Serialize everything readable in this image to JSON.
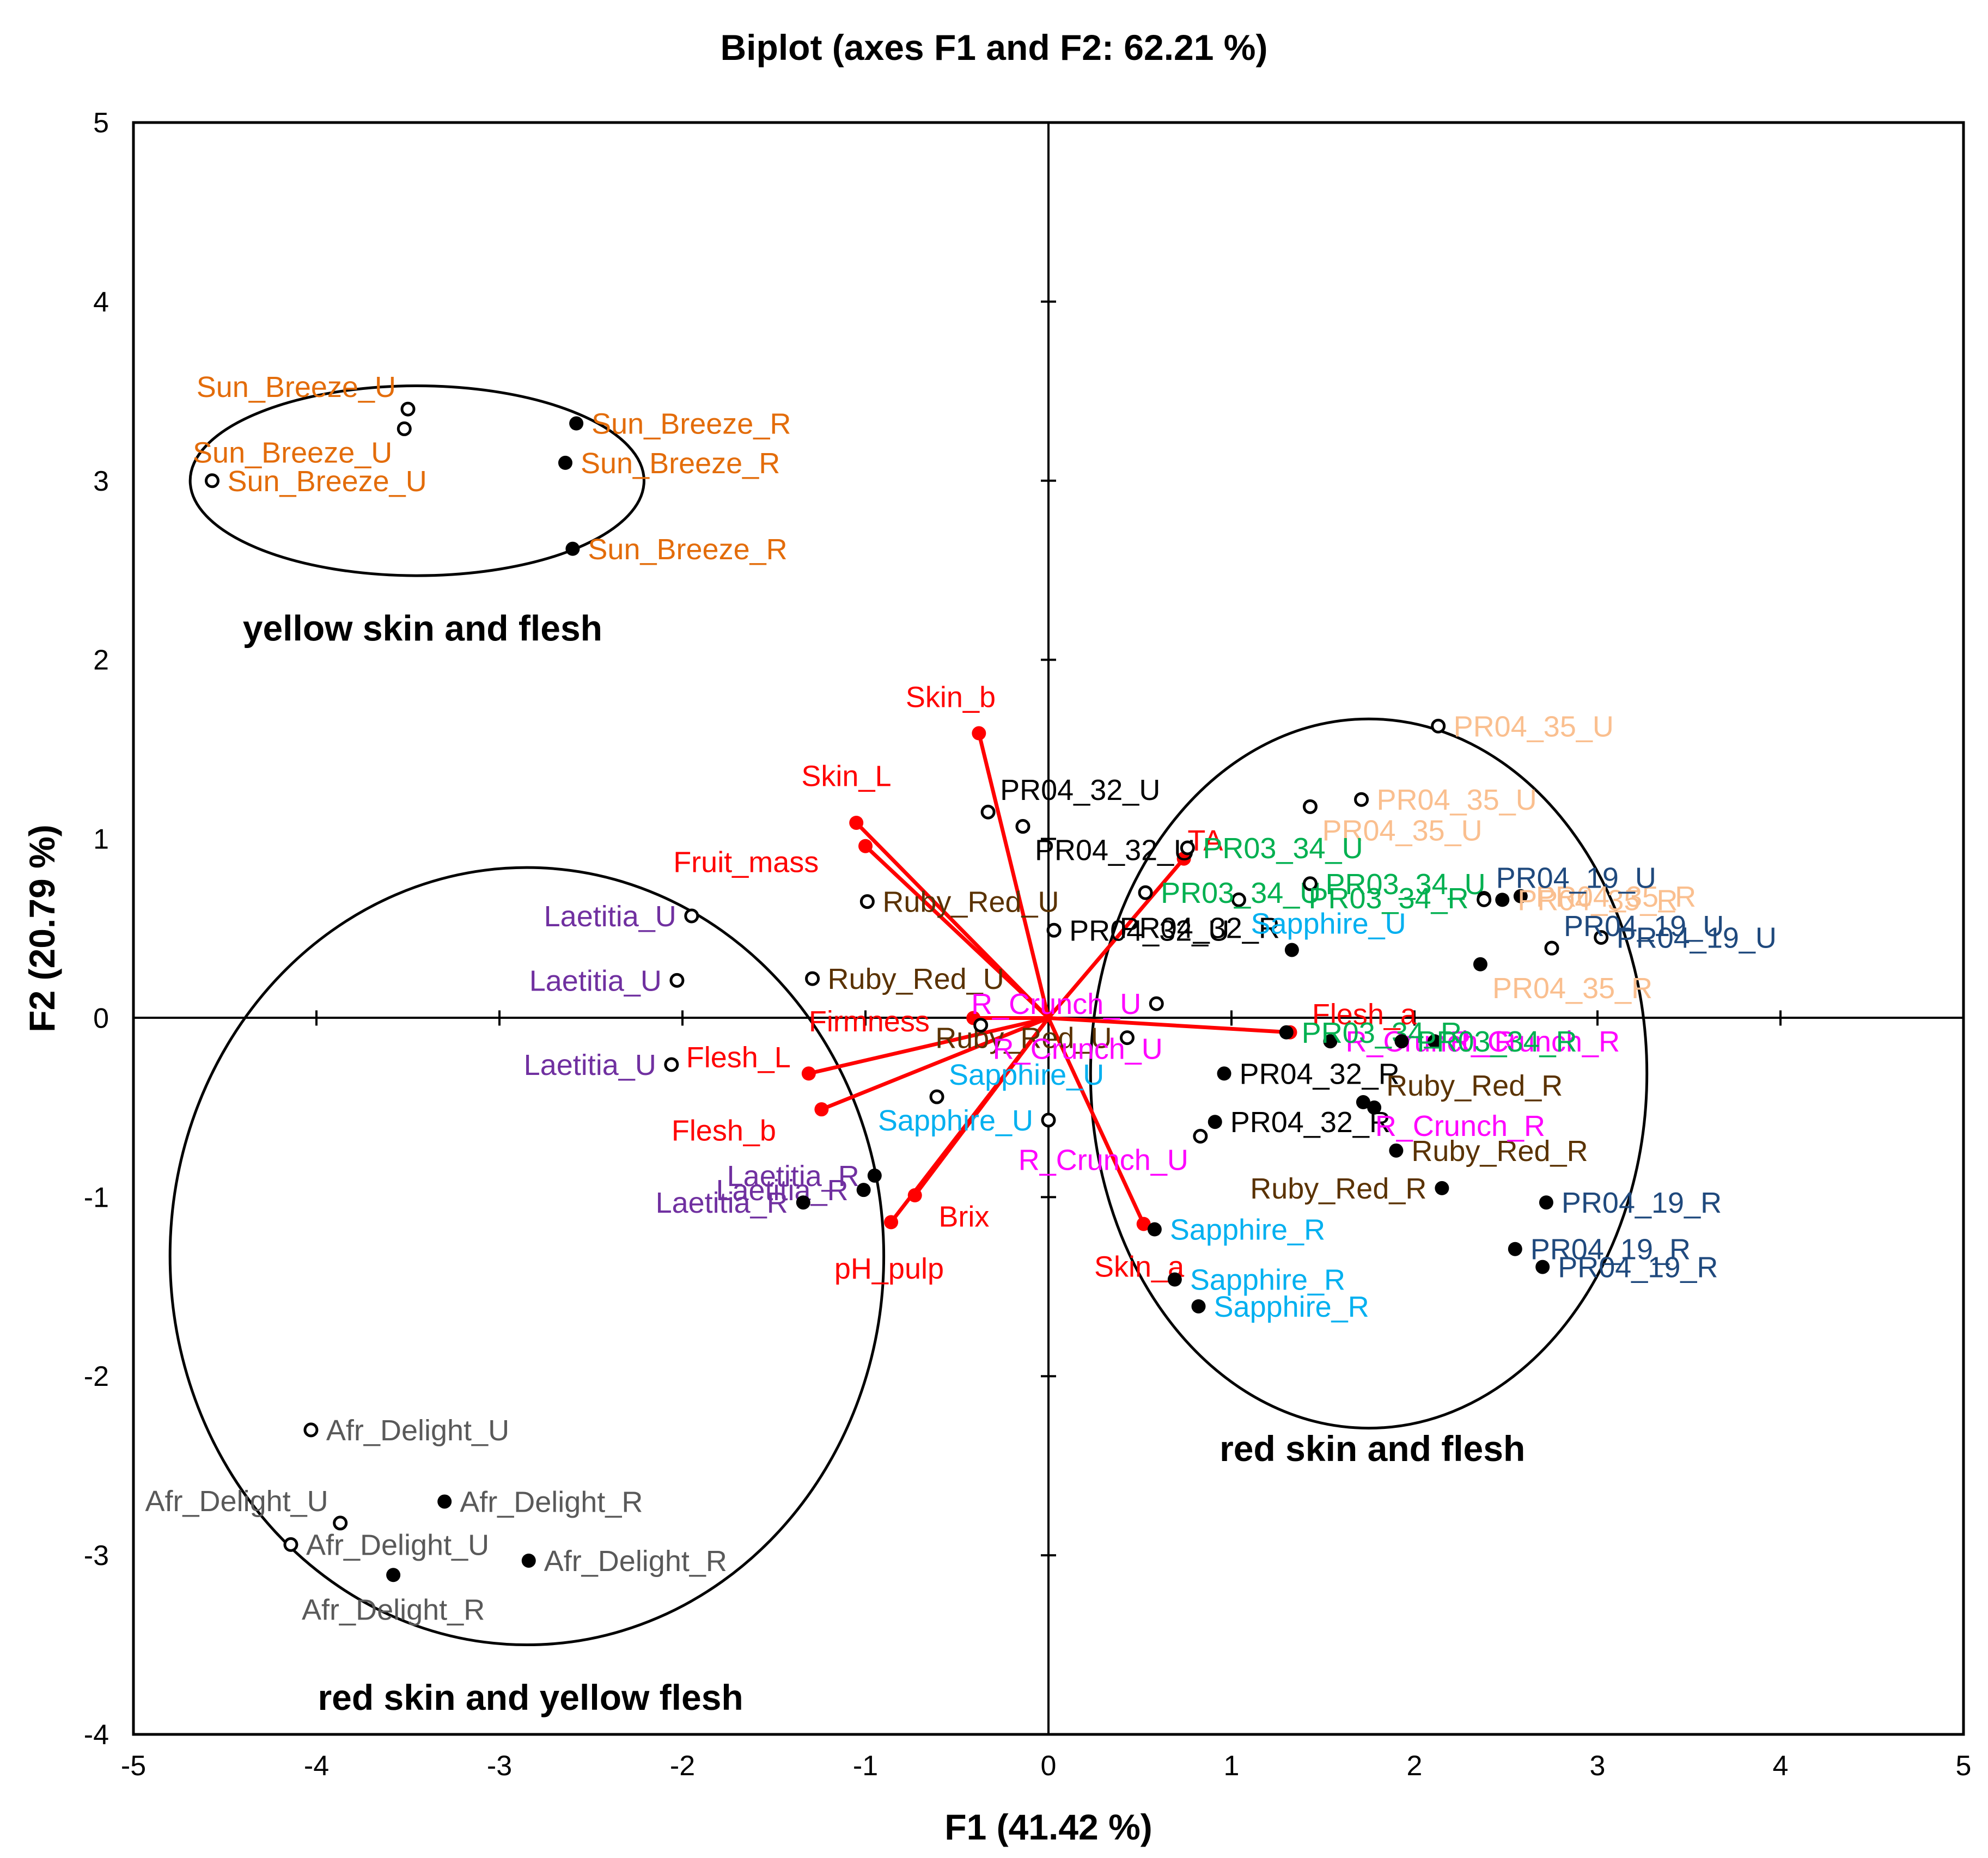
{
  "chart_data": {
    "type": "scatter",
    "title": "Biplot (axes F1 and F2: 62.21 %)",
    "xlabel": "F1 (41.42 %)",
    "ylabel": "F2 (20.79 %)",
    "xlim": [
      -5,
      5
    ],
    "ylim": [
      -4,
      5
    ],
    "xticks": [
      "-5",
      "-4",
      "-3",
      "-2",
      "-1",
      "0",
      "1",
      "2",
      "3",
      "4",
      "5"
    ],
    "yticks": [
      "-4",
      "-3",
      "-2",
      "-1",
      "0",
      "1",
      "2",
      "3",
      "4",
      "5"
    ],
    "colors": {
      "Sun_Breeze": "#e36c0a",
      "Laetitia": "#7030a0",
      "Afr_Delight": "#595959",
      "PR04_32": "#000000",
      "Ruby_Red": "#5a3200",
      "Sapphire": "#00b0f0",
      "R_Crunch": "#ff00ff",
      "PR04_35": "#fabf8f",
      "PR03_34": "#00b050",
      "PR04_19": "#1f497d",
      "variables": "#ff0000"
    },
    "observations": [
      {
        "label": "Sun_Breeze_U",
        "group": "Sun_Breeze",
        "x": -3.5,
        "y": 3.4,
        "ripe": false,
        "label_pos": "nw"
      },
      {
        "label": "Sun_Breeze_U",
        "group": "Sun_Breeze",
        "x": -3.52,
        "y": 3.29,
        "ripe": false,
        "label_pos": "sw"
      },
      {
        "label": "Sun_Breeze_U",
        "group": "Sun_Breeze",
        "x": -4.57,
        "y": 3.0,
        "ripe": false,
        "label_pos": "e"
      },
      {
        "label": "Sun_Breeze_R",
        "group": "Sun_Breeze",
        "x": -2.58,
        "y": 3.32,
        "ripe": true,
        "label_pos": "e"
      },
      {
        "label": "Sun_Breeze_R",
        "group": "Sun_Breeze",
        "x": -2.64,
        "y": 3.1,
        "ripe": true,
        "label_pos": "e"
      },
      {
        "label": "Sun_Breeze_R",
        "group": "Sun_Breeze",
        "x": -2.6,
        "y": 2.62,
        "ripe": true,
        "label_pos": "e"
      },
      {
        "label": "Laetitia_U",
        "group": "Laetitia",
        "x": -1.95,
        "y": 0.57,
        "ripe": false,
        "label_pos": "w"
      },
      {
        "label": "Laetitia_U",
        "group": "Laetitia",
        "x": -2.03,
        "y": 0.21,
        "ripe": false,
        "label_pos": "w"
      },
      {
        "label": "Laetitia_U",
        "group": "Laetitia",
        "x": -2.06,
        "y": -0.26,
        "ripe": false,
        "label_pos": "w"
      },
      {
        "label": "Laetitia_R",
        "group": "Laetitia",
        "x": -0.95,
        "y": -0.88,
        "ripe": true,
        "label_pos": "w"
      },
      {
        "label": "Laetitia_R",
        "group": "Laetitia",
        "x": -1.01,
        "y": -0.96,
        "ripe": true,
        "label_pos": "w"
      },
      {
        "label": "Laetitia_R",
        "group": "Laetitia",
        "x": -1.34,
        "y": -1.03,
        "ripe": true,
        "label_pos": "w"
      },
      {
        "label": "Afr_Delight_U",
        "group": "Afr_Delight",
        "x": -4.03,
        "y": -2.3,
        "ripe": false,
        "label_pos": "e"
      },
      {
        "label": "Afr_Delight_U",
        "group": "Afr_Delight",
        "x": -3.87,
        "y": -2.82,
        "ripe": false,
        "label_pos": "nw"
      },
      {
        "label": "Afr_Delight_U",
        "group": "Afr_Delight",
        "x": -4.14,
        "y": -2.94,
        "ripe": false,
        "label_pos": "e"
      },
      {
        "label": "Afr_Delight_R",
        "group": "Afr_Delight",
        "x": -3.3,
        "y": -2.7,
        "ripe": true,
        "label_pos": "e"
      },
      {
        "label": "Afr_Delight_R",
        "group": "Afr_Delight",
        "x": -2.84,
        "y": -3.03,
        "ripe": true,
        "label_pos": "e"
      },
      {
        "label": "Afr_Delight_R",
        "group": "Afr_Delight",
        "x": -3.58,
        "y": -3.11,
        "ripe": true,
        "label_pos": "s"
      },
      {
        "label": "PR04_32_U",
        "group": "PR04_32",
        "x": -0.33,
        "y": 1.15,
        "ripe": false,
        "label_pos": "ne"
      },
      {
        "label": "PR04_32_U",
        "group": "PR04_32",
        "x": -0.14,
        "y": 1.07,
        "ripe": false,
        "label_pos": "se"
      },
      {
        "label": "PR04_32_U",
        "group": "PR04_32",
        "x": 0.03,
        "y": 0.49,
        "ripe": false,
        "label_pos": "e"
      },
      {
        "label": "PR04_32_R",
        "group": "PR04_32",
        "x": 1.33,
        "y": 0.38,
        "ripe": true,
        "label_pos": "nw"
      },
      {
        "label": "PR04_32_R",
        "group": "PR04_32",
        "x": 0.96,
        "y": -0.31,
        "ripe": true,
        "label_pos": "e"
      },
      {
        "label": "PR04_32_R",
        "group": "PR04_32",
        "x": 0.91,
        "y": -0.58,
        "ripe": true,
        "label_pos": "e"
      },
      {
        "label": "Ruby_Red_U",
        "group": "Ruby_Red",
        "x": -0.99,
        "y": 0.65,
        "ripe": false,
        "label_pos": "e"
      },
      {
        "label": "Ruby_Red_U",
        "group": "Ruby_Red",
        "x": -1.29,
        "y": 0.22,
        "ripe": false,
        "label_pos": "e"
      },
      {
        "label": "Ruby_Red_U",
        "group": "Ruby_Red",
        "x": 0.43,
        "y": -0.11,
        "ripe": false,
        "label_pos": "w"
      },
      {
        "label": "Ruby_Red_R",
        "group": "Ruby_Red",
        "x": 1.78,
        "y": -0.5,
        "ripe": true,
        "label_pos": "ne"
      },
      {
        "label": "Ruby_Red_R",
        "group": "Ruby_Red",
        "x": 1.9,
        "y": -0.74,
        "ripe": true,
        "label_pos": "e"
      },
      {
        "label": "Ruby_Red_R",
        "group": "Ruby_Red",
        "x": 2.15,
        "y": -0.95,
        "ripe": true,
        "label_pos": "w"
      },
      {
        "label": "Sapphire_U",
        "group": "Sapphire",
        "x": 1.04,
        "y": 0.66,
        "ripe": false,
        "label_pos": "se"
      },
      {
        "label": "Sapphire_U",
        "group": "Sapphire",
        "x": -0.61,
        "y": -0.44,
        "ripe": false,
        "label_pos": "ne"
      },
      {
        "label": "Sapphire_U",
        "group": "Sapphire",
        "x": 0.0,
        "y": -0.57,
        "ripe": false,
        "label_pos": "w"
      },
      {
        "label": "Sapphire_R",
        "group": "Sapphire",
        "x": 0.58,
        "y": -1.18,
        "ripe": true,
        "label_pos": "e"
      },
      {
        "label": "Sapphire_R",
        "group": "Sapphire",
        "x": 0.69,
        "y": -1.46,
        "ripe": true,
        "label_pos": "e"
      },
      {
        "label": "Sapphire_R",
        "group": "Sapphire",
        "x": 0.82,
        "y": -1.61,
        "ripe": true,
        "label_pos": "e"
      },
      {
        "label": "R_Crunch_U",
        "group": "R_Crunch",
        "x": 0.59,
        "y": 0.08,
        "ripe": false,
        "label_pos": "w"
      },
      {
        "label": "R_Crunch_U",
        "group": "R_Crunch",
        "x": -0.37,
        "y": -0.04,
        "ripe": false,
        "label_pos": "se"
      },
      {
        "label": "R_Crunch_U",
        "group": "R_Crunch",
        "x": 0.83,
        "y": -0.66,
        "ripe": false,
        "label_pos": "sw"
      },
      {
        "label": "R_Crunch_R",
        "group": "R_Crunch",
        "x": 1.54,
        "y": -0.13,
        "ripe": true,
        "label_pos": "e"
      },
      {
        "label": "R_Crunch_R",
        "group": "R_Crunch",
        "x": 2.11,
        "y": -0.13,
        "ripe": true,
        "label_pos": "e"
      },
      {
        "label": "R_Crunch_R",
        "group": "R_Crunch",
        "x": 1.72,
        "y": -0.47,
        "ripe": true,
        "label_pos": "se"
      },
      {
        "label": "PR04_35_U",
        "group": "PR04_35",
        "x": 2.13,
        "y": 1.63,
        "ripe": false,
        "label_pos": "e"
      },
      {
        "label": "PR04_35_U",
        "group": "PR04_35",
        "x": 1.71,
        "y": 1.22,
        "ripe": false,
        "label_pos": "e"
      },
      {
        "label": "PR04_35_U",
        "group": "PR04_35",
        "x": 1.43,
        "y": 1.18,
        "ripe": false,
        "label_pos": "se"
      },
      {
        "label": "PR04_35_R",
        "group": "PR04_35",
        "x": 2.58,
        "y": 0.68,
        "ripe": true,
        "label_pos": "e"
      },
      {
        "label": "PR04_35_R",
        "group": "PR04_35",
        "x": 2.48,
        "y": 0.66,
        "ripe": true,
        "label_pos": "e"
      },
      {
        "label": "PR04_35_R",
        "group": "PR04_35",
        "x": 2.36,
        "y": 0.3,
        "ripe": true,
        "label_pos": "se"
      },
      {
        "label": "PR03_34_U",
        "group": "PR03_34",
        "x": 0.76,
        "y": 0.95,
        "ripe": false,
        "label_pos": "e"
      },
      {
        "label": "PR03_34_U",
        "group": "PR03_34",
        "x": 0.53,
        "y": 0.7,
        "ripe": false,
        "label_pos": "e"
      },
      {
        "label": "PR03_34_U",
        "group": "PR03_34",
        "x": 1.43,
        "y": 0.75,
        "ripe": false,
        "label_pos": "e"
      },
      {
        "label": "PR03_34_R",
        "group": "PR03_34",
        "x": 2.38,
        "y": 0.67,
        "ripe": true,
        "label_pos": "w"
      },
      {
        "label": "PR03_34_R",
        "group": "PR03_34",
        "x": 1.3,
        "y": -0.08,
        "ripe": true,
        "label_pos": "e"
      },
      {
        "label": "PR03_34_R",
        "group": "PR03_34",
        "x": 1.93,
        "y": -0.13,
        "ripe": true,
        "label_pos": "e"
      },
      {
        "label": "PR04_19_U",
        "group": "PR04_19",
        "x": 3.02,
        "y": 0.45,
        "ripe": false,
        "label_pos": "e"
      },
      {
        "label": "PR04_19_U",
        "group": "PR04_19",
        "x": 2.75,
        "y": 0.39,
        "ripe": false,
        "label_pos": "ne"
      },
      {
        "label": "PR04_19_U",
        "group": "PR04_19",
        "x": 2.38,
        "y": 0.66,
        "ripe": false,
        "label_pos": "ne"
      },
      {
        "label": "PR04_19_R",
        "group": "PR04_19",
        "x": 2.72,
        "y": -1.03,
        "ripe": true,
        "label_pos": "e"
      },
      {
        "label": "PR04_19_R",
        "group": "PR04_19",
        "x": 2.55,
        "y": -1.29,
        "ripe": true,
        "label_pos": "e"
      },
      {
        "label": "PR04_19_R",
        "group": "PR04_19",
        "x": 2.7,
        "y": -1.39,
        "ripe": true,
        "label_pos": "e"
      }
    ],
    "variables": [
      {
        "label": "Skin_b",
        "x": -0.38,
        "y": 1.59,
        "label_dx": -0.4,
        "label_dy": 0.2
      },
      {
        "label": "Skin_L",
        "x": -1.05,
        "y": 1.09,
        "label_dx": -0.3,
        "label_dy": 0.26
      },
      {
        "label": "Fruit_mass",
        "x": -1.0,
        "y": 0.96,
        "label_dx": -1.05,
        "label_dy": -0.09
      },
      {
        "label": "TA",
        "x": 0.74,
        "y": 0.89,
        "label_dx": 0.02,
        "label_dy": 0.1
      },
      {
        "label": "Firmness",
        "x": -0.41,
        "y": 0.0,
        "label_dx": -0.9,
        "label_dy": -0.02
      },
      {
        "label": "Flesh_a",
        "x": 1.32,
        "y": -0.08,
        "label_dx": 0.12,
        "label_dy": 0.1
      },
      {
        "label": "Flesh_L",
        "x": -1.31,
        "y": -0.31,
        "label_dx": -0.67,
        "label_dy": 0.09
      },
      {
        "label": "Flesh_b",
        "x": -1.24,
        "y": -0.51,
        "label_dx": -0.82,
        "label_dy": -0.12
      },
      {
        "label": "Brix",
        "x": -0.73,
        "y": -0.99,
        "label_dx": 0.13,
        "label_dy": -0.12
      },
      {
        "label": "pH_pulp",
        "x": -0.86,
        "y": -1.14,
        "label_dx": -0.31,
        "label_dy": -0.26
      },
      {
        "label": "Skin_a",
        "x": 0.52,
        "y": -1.15,
        "label_dx": -0.27,
        "label_dy": -0.24
      }
    ],
    "groups": [
      {
        "label": "yellow skin and flesh",
        "cx": -3.45,
        "cy": 3.0,
        "rx": 1.24,
        "ry": 0.53,
        "label_x": -3.42,
        "label_y": 2.18
      },
      {
        "label": "red skin and yellow flesh",
        "cx": -2.85,
        "cy": -1.33,
        "rx": 1.95,
        "ry": 2.17,
        "label_x": -2.83,
        "label_y": -3.79
      },
      {
        "label": "red skin and flesh",
        "cx": 1.75,
        "cy": -0.31,
        "rx": 1.52,
        "ry": 1.98,
        "label_x": 1.77,
        "label_y": -2.4
      }
    ]
  }
}
